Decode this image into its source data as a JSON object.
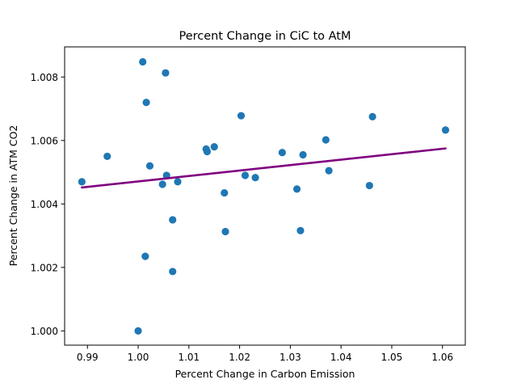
{
  "chart_data": {
    "type": "scatter",
    "title": "Percent Change in CiC to AtM",
    "xlabel": "Percent Change in Carbon Emission",
    "ylabel": "Percent Change in ATM CO2",
    "xlim": [
      0.9855,
      1.0645
    ],
    "ylim": [
      0.99955,
      1.00895
    ],
    "xticks": [
      0.99,
      1.0,
      1.01,
      1.02,
      1.03,
      1.04,
      1.05,
      1.06
    ],
    "xtick_labels": [
      "0.99",
      "1.00",
      "1.01",
      "1.02",
      "1.03",
      "1.04",
      "1.05",
      "1.06"
    ],
    "yticks": [
      1.0,
      1.002,
      1.004,
      1.006,
      1.008
    ],
    "ytick_labels": [
      "1.000",
      "1.002",
      "1.004",
      "1.006",
      "1.008"
    ],
    "grid": false,
    "point_color": "#1f77b4",
    "trend_color": "#800080",
    "points": [
      {
        "x": 0.9889,
        "y": 1.0047
      },
      {
        "x": 0.9939,
        "y": 1.0055
      },
      {
        "x": 1.0,
        "y": 1.0
      },
      {
        "x": 1.0009,
        "y": 1.00848
      },
      {
        "x": 1.0014,
        "y": 1.00235
      },
      {
        "x": 1.0016,
        "y": 1.0072
      },
      {
        "x": 1.0023,
        "y": 1.0052
      },
      {
        "x": 1.0048,
        "y": 1.00462
      },
      {
        "x": 1.0054,
        "y": 1.00813
      },
      {
        "x": 1.0056,
        "y": 1.0049
      },
      {
        "x": 1.0068,
        "y": 1.0035
      },
      {
        "x": 1.0068,
        "y": 1.00187
      },
      {
        "x": 1.0078,
        "y": 1.0047
      },
      {
        "x": 1.0134,
        "y": 1.00573
      },
      {
        "x": 1.0136,
        "y": 1.00565
      },
      {
        "x": 1.015,
        "y": 1.0058
      },
      {
        "x": 1.017,
        "y": 1.00435
      },
      {
        "x": 1.0172,
        "y": 1.00313
      },
      {
        "x": 1.0203,
        "y": 1.00678
      },
      {
        "x": 1.0211,
        "y": 1.0049
      },
      {
        "x": 1.0231,
        "y": 1.00483
      },
      {
        "x": 1.0284,
        "y": 1.00562
      },
      {
        "x": 1.0313,
        "y": 1.00447
      },
      {
        "x": 1.032,
        "y": 1.00316
      },
      {
        "x": 1.0325,
        "y": 1.00555
      },
      {
        "x": 1.037,
        "y": 1.00602
      },
      {
        "x": 1.0376,
        "y": 1.00505
      },
      {
        "x": 1.0456,
        "y": 1.00458
      },
      {
        "x": 1.0462,
        "y": 1.00675
      },
      {
        "x": 1.0606,
        "y": 1.00633
      }
    ],
    "trendline": {
      "x": [
        0.9889,
        1.0606
      ],
      "y": [
        1.00452,
        1.00575
      ]
    }
  }
}
